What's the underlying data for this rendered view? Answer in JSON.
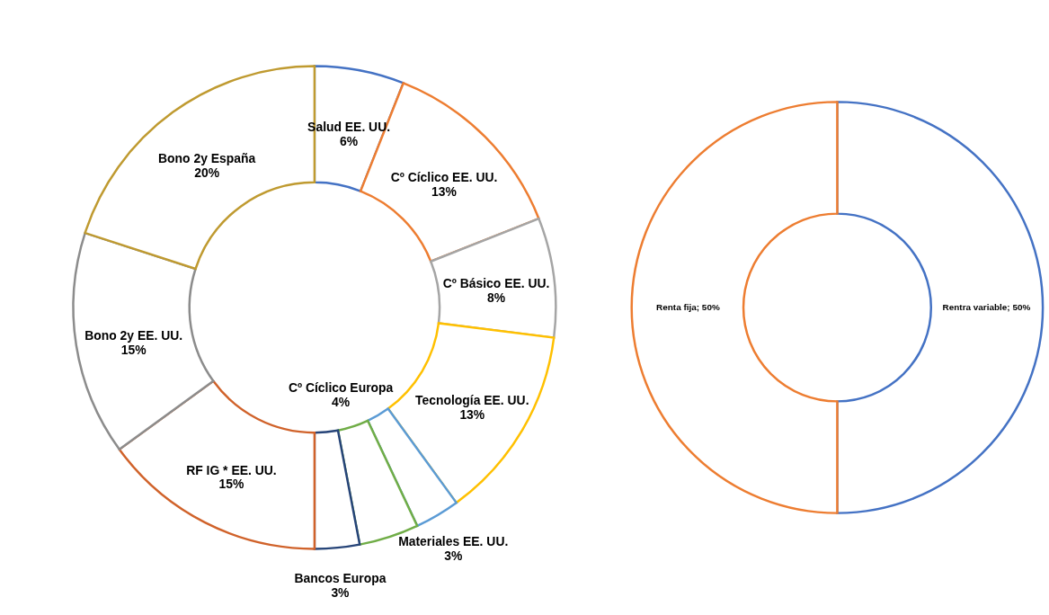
{
  "chart_data": [
    {
      "type": "donut",
      "categories": [
        "Salud EE. UU.",
        "Cº Cíclico EE. UU.",
        "Cº Básico EE. UU.",
        "Tecnología EE. UU.",
        "Materiales EE. UU.",
        "Cº Cíclico Europa",
        "Bancos Europa",
        "RF IG * EE. UU.",
        "Bono 2y EE. UU.",
        "Bono 2y España"
      ],
      "values": [
        6,
        13,
        8,
        13,
        3,
        4,
        3,
        15,
        15,
        20
      ],
      "colors": [
        "#4472c4",
        "#ed7d31",
        "#a5a5a5",
        "#ffc000",
        "#5b9bd5",
        "#70ad47",
        "#264478",
        "#d0622a",
        "#8c8c8c",
        "#bf9a30"
      ],
      "value_labels": [
        "6%",
        "13%",
        "8%",
        "13%",
        "3%",
        "4%",
        "3%",
        "15%",
        "15%",
        "20%"
      ],
      "legend": false
    },
    {
      "type": "donut",
      "categories": [
        "Rentra variable",
        "Renta fija"
      ],
      "values": [
        50,
        50
      ],
      "colors": [
        "#4472c4",
        "#ed7d31"
      ],
      "value_labels": [
        "50%",
        "50%"
      ],
      "legend": false
    }
  ]
}
